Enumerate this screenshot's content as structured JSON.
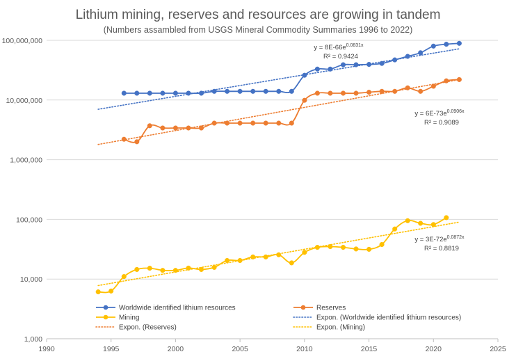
{
  "chart_data": {
    "type": "line",
    "title": "Lithium mining, reserves and resources are growing in tandem",
    "subtitle": "(Numbers assambled from USGS Mineral Commodity Summaries 1996 to 2022)",
    "xlabel": "",
    "ylabel": "",
    "x_scale": "linear",
    "y_scale": "log",
    "xlim": [
      1990,
      2025
    ],
    "ylim": [
      1000,
      100000000
    ],
    "x_ticks": [
      1990,
      1995,
      2000,
      2005,
      2010,
      2015,
      2020,
      2025
    ],
    "x_tick_labels": [
      "1990",
      "1995",
      "2000",
      "2005",
      "2010",
      "2015",
      "2020",
      "2025"
    ],
    "y_ticks": [
      1000,
      10000,
      100000,
      1000000,
      10000000,
      100000000
    ],
    "y_tick_labels": [
      "1,000",
      "10,000",
      "100,000",
      "1,000,000",
      "10,000,000",
      "100,000,000"
    ],
    "grid": "horizontal",
    "legend_position": "bottom",
    "series": [
      {
        "name": "Worldwide identified lithium resources",
        "color": "#4472c4",
        "style": "line-marker",
        "x": [
          1996,
          1997,
          1998,
          1999,
          2000,
          2001,
          2002,
          2003,
          2004,
          2005,
          2006,
          2007,
          2008,
          2009,
          2010,
          2011,
          2012,
          2013,
          2014,
          2015,
          2016,
          2017,
          2018,
          2019,
          2020,
          2021,
          2022
        ],
        "values": [
          13000000,
          13000000,
          13000000,
          13000000,
          13000000,
          13000000,
          13000000,
          14000000,
          14000000,
          14000000,
          14000000,
          14000000,
          14000000,
          14000000,
          26000000,
          33000000,
          33000000,
          39000000,
          39000000,
          39500000,
          41000000,
          47000000,
          54000000,
          62000000,
          80000000,
          86000000,
          89000000
        ]
      },
      {
        "name": "Reserves",
        "color": "#ed7d31",
        "style": "line-marker",
        "x": [
          1996,
          1997,
          1998,
          1999,
          2000,
          2001,
          2002,
          2003,
          2004,
          2005,
          2006,
          2007,
          2008,
          2009,
          2010,
          2011,
          2012,
          2013,
          2014,
          2015,
          2016,
          2017,
          2018,
          2019,
          2020,
          2021,
          2022
        ],
        "values": [
          2200000,
          2000000,
          3700000,
          3400000,
          3400000,
          3400000,
          3400000,
          4100000,
          4100000,
          4100000,
          4100000,
          4100000,
          4100000,
          4100000,
          9900000,
          13000000,
          13000000,
          13000000,
          13000000,
          13500000,
          14000000,
          14000000,
          16000000,
          14000000,
          17000000,
          21000000,
          22000000
        ]
      },
      {
        "name": "Mining",
        "color": "#ffc000",
        "style": "line-marker",
        "x": [
          1994,
          1995,
          1996,
          1997,
          1998,
          1999,
          2000,
          2001,
          2002,
          2003,
          2004,
          2005,
          2006,
          2007,
          2008,
          2009,
          2010,
          2011,
          2012,
          2013,
          2014,
          2015,
          2016,
          2017,
          2018,
          2019,
          2020,
          2021
        ],
        "values": [
          6100,
          6300,
          11000,
          14500,
          15200,
          14000,
          14000,
          15300,
          14500,
          15700,
          20500,
          20500,
          23500,
          23500,
          25500,
          18700,
          28000,
          34000,
          35000,
          34000,
          32000,
          31500,
          38000,
          69000,
          95000,
          86000,
          82000,
          107000
        ]
      },
      {
        "name": "Expon. (Reserves)",
        "color": "#ed7d31",
        "style": "dotted",
        "x": [
          1994,
          2022
        ],
        "values": [
          1800000,
          22000000
        ]
      },
      {
        "name": "Expon. (Worldwide identified lithium resources)",
        "color": "#4472c4",
        "style": "dotted",
        "x": [
          1994,
          2022
        ],
        "values": [
          7000000,
          72000000
        ]
      },
      {
        "name": "Expon. (Mining)",
        "color": "#ffc000",
        "style": "dotted",
        "x": [
          1994,
          2022
        ],
        "values": [
          7800,
          90000
        ]
      }
    ],
    "annotations": [
      {
        "series": "Worldwide identified lithium resources",
        "equation_base": "y = 8E-66e",
        "equation_exp": "0.0831x",
        "r2": "R² = 0.9424"
      },
      {
        "series": "Reserves",
        "equation_base": "y = 6E-73e",
        "equation_exp": "0.0906x",
        "r2": "R² = 0.9089"
      },
      {
        "series": "Mining",
        "equation_base": "y = 3E-72e",
        "equation_exp": "0.0872x",
        "r2": "R² = 0.8819"
      }
    ]
  }
}
